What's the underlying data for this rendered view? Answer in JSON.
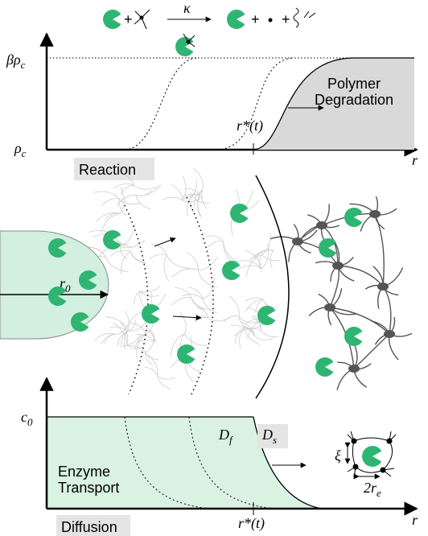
{
  "reaction": {
    "rate": "κ",
    "y_top": {
      "base": "βρ",
      "sub": "c"
    },
    "y_bottom": {
      "base": "ρ",
      "sub": "c"
    },
    "annotation": [
      "Polymer",
      "Degradation"
    ],
    "front": "r*(t)",
    "x_label": "r",
    "panel_label": "Reaction"
  },
  "middle": {
    "radius": {
      "base": "r",
      "sub": "0"
    }
  },
  "diffusion": {
    "y_top": {
      "base": "c",
      "sub": "0"
    },
    "inner": {
      "base": "D",
      "sub": "f"
    },
    "outer": {
      "base": "D",
      "sub": "s"
    },
    "annotation": [
      "Enzyme",
      "Transport"
    ],
    "mesh_size": "ξ",
    "crosslink": {
      "base": "2r",
      "sub": "e"
    },
    "front": "r*(t)",
    "x_label": "r",
    "panel_label": "Diffusion"
  }
}
